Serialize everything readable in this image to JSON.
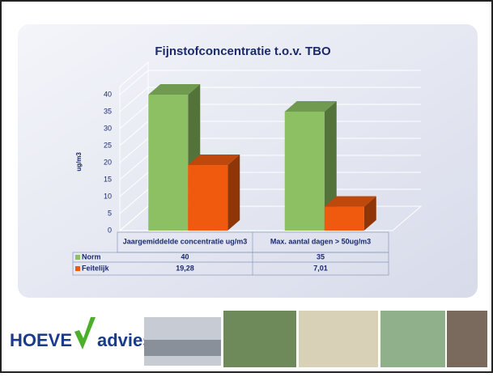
{
  "chart_data": {
    "type": "bar3d",
    "title": "Fijnstofconcentratie t.o.v. TBO",
    "y_label": "ug/m3",
    "categories": [
      "Jaargemiddelde concentratie ug/m3",
      "Max. aantal dagen > 50ug/m3"
    ],
    "series": [
      {
        "name": "Norm",
        "color": "#8cc063",
        "values": [
          40,
          35
        ]
      },
      {
        "name": "Feitelijk",
        "color": "#ef5a0f",
        "values": [
          19.28,
          7.01
        ],
        "value_labels": [
          "19,28",
          "7,01"
        ]
      }
    ],
    "ylim": [
      0,
      40
    ],
    "yticks": [
      0,
      5,
      10,
      15,
      20,
      25,
      30,
      35,
      40
    ],
    "grid": true
  },
  "logo": {
    "left": "HOEVE",
    "right": "advies"
  }
}
